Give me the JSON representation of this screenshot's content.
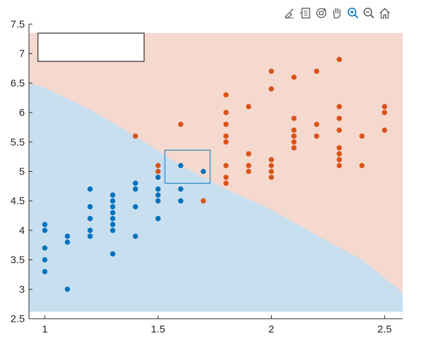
{
  "toolbar": {
    "buttons": [
      {
        "icon": "brush-icon"
      },
      {
        "icon": "datatip-icon"
      },
      {
        "icon": "rotate-3d-icon"
      },
      {
        "icon": "pan-hand-icon"
      },
      {
        "icon": "zoom-in-icon"
      },
      {
        "icon": "zoom-out-icon"
      },
      {
        "icon": "home-icon"
      }
    ]
  },
  "legend": {
    "entries": []
  },
  "colors": {
    "class_a_region": "#c8dff0",
    "class_b_region": "#f6d9ce",
    "class_a_points": "#0072bd",
    "class_b_points": "#d95319",
    "axis": "#262626",
    "selection_box": "#0072bd"
  },
  "chart_data": {
    "type": "scatter",
    "title": "",
    "xlabel": "",
    "ylabel": "",
    "xlim": [
      0.93,
      2.58
    ],
    "ylim": [
      2.5,
      7.5
    ],
    "x_ticks": [
      1,
      1.5,
      2,
      2.5
    ],
    "x_tick_labels": [
      "1",
      "1.5",
      "2",
      "2.5"
    ],
    "y_ticks": [
      2.5,
      3,
      3.5,
      4,
      4.5,
      5,
      5.5,
      6,
      6.5,
      7,
      7.5
    ],
    "y_tick_labels": [
      "2.5",
      "3",
      "3.5",
      "4",
      "4.5",
      "5",
      "5.5",
      "6",
      "6.5",
      "7",
      "7.5"
    ],
    "grid": false,
    "decision_regions": {
      "x_range": [
        0.93,
        2.58
      ],
      "y_range": [
        2.62,
        7.35
      ],
      "boundary": [
        [
          0.93,
          6.5
        ],
        [
          1.0,
          6.42
        ],
        [
          1.2,
          6.05
        ],
        [
          1.4,
          5.6
        ],
        [
          1.6,
          5.1
        ],
        [
          1.8,
          4.7
        ],
        [
          2.0,
          4.35
        ],
        [
          2.2,
          3.92
        ],
        [
          2.4,
          3.5
        ],
        [
          2.58,
          2.95
        ]
      ],
      "below_class": "class_a",
      "above_class": "class_b"
    },
    "selection_box": {
      "x": [
        1.53,
        1.73
      ],
      "y": [
        4.8,
        5.36
      ]
    },
    "series": [
      {
        "class": "class_a",
        "points": [
          [
            1.0,
            4.1
          ],
          [
            1.0,
            4.0
          ],
          [
            1.0,
            3.7
          ],
          [
            1.0,
            3.5
          ],
          [
            1.0,
            3.3
          ],
          [
            1.1,
            3.9
          ],
          [
            1.1,
            3.8
          ],
          [
            1.1,
            3.0
          ],
          [
            1.2,
            4.7
          ],
          [
            1.2,
            4.4
          ],
          [
            1.2,
            4.2
          ],
          [
            1.2,
            4.0
          ],
          [
            1.2,
            3.9
          ],
          [
            1.3,
            4.6
          ],
          [
            1.3,
            4.5
          ],
          [
            1.3,
            4.4
          ],
          [
            1.3,
            4.3
          ],
          [
            1.3,
            4.2
          ],
          [
            1.3,
            4.1
          ],
          [
            1.3,
            4.0
          ],
          [
            1.3,
            3.6
          ],
          [
            1.4,
            4.8
          ],
          [
            1.4,
            4.7
          ],
          [
            1.4,
            4.4
          ],
          [
            1.4,
            3.9
          ],
          [
            1.5,
            4.9
          ],
          [
            1.5,
            4.7
          ],
          [
            1.5,
            4.6
          ],
          [
            1.5,
            4.5
          ],
          [
            1.5,
            4.2
          ],
          [
            1.6,
            5.1
          ],
          [
            1.6,
            4.7
          ],
          [
            1.6,
            4.5
          ],
          [
            1.7,
            5.0
          ]
        ]
      },
      {
        "class": "class_b",
        "points": [
          [
            1.4,
            5.6
          ],
          [
            1.5,
            5.1
          ],
          [
            1.5,
            5.0
          ],
          [
            1.6,
            5.8
          ],
          [
            1.7,
            4.5
          ],
          [
            1.8,
            6.3
          ],
          [
            1.8,
            6.0
          ],
          [
            1.8,
            5.8
          ],
          [
            1.8,
            5.6
          ],
          [
            1.8,
            5.5
          ],
          [
            1.8,
            5.1
          ],
          [
            1.8,
            4.9
          ],
          [
            1.8,
            4.8
          ],
          [
            1.9,
            6.1
          ],
          [
            1.9,
            5.3
          ],
          [
            1.9,
            5.1
          ],
          [
            1.9,
            5.0
          ],
          [
            2.0,
            6.7
          ],
          [
            2.0,
            6.4
          ],
          [
            2.0,
            5.2
          ],
          [
            2.0,
            5.1
          ],
          [
            2.0,
            5.0
          ],
          [
            2.0,
            4.9
          ],
          [
            2.1,
            6.6
          ],
          [
            2.1,
            5.9
          ],
          [
            2.1,
            5.7
          ],
          [
            2.1,
            5.6
          ],
          [
            2.1,
            5.5
          ],
          [
            2.1,
            5.4
          ],
          [
            2.2,
            6.7
          ],
          [
            2.2,
            5.8
          ],
          [
            2.2,
            5.6
          ],
          [
            2.3,
            6.9
          ],
          [
            2.3,
            6.1
          ],
          [
            2.3,
            5.9
          ],
          [
            2.3,
            5.7
          ],
          [
            2.3,
            5.4
          ],
          [
            2.3,
            5.3
          ],
          [
            2.3,
            5.2
          ],
          [
            2.3,
            5.1
          ],
          [
            2.4,
            5.6
          ],
          [
            2.4,
            5.1
          ],
          [
            2.5,
            6.1
          ],
          [
            2.5,
            6.0
          ],
          [
            2.5,
            5.7
          ]
        ]
      }
    ]
  }
}
